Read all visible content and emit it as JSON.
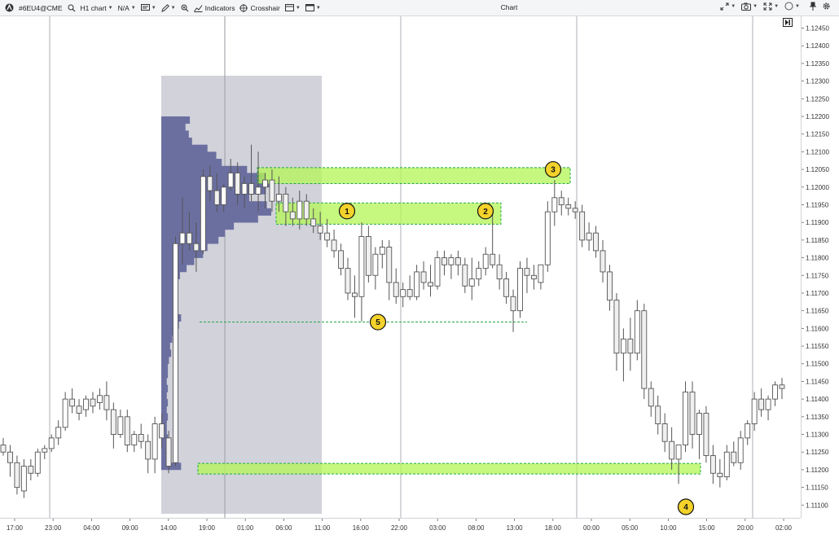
{
  "toolbar": {
    "symbol": "#6EU4@CME",
    "timeframe": "H1 chart",
    "value": "N/A",
    "indicators": "Indicators",
    "crosshair": "Crosshair",
    "title": "Chart"
  },
  "icons": {
    "logo": "atas-logo-icon",
    "search": "search-icon",
    "template": "template-icon",
    "pencil": "pencil-icon",
    "zoom": "zoom-icon",
    "indicators": "line-chart-icon",
    "crosshair": "crosshair-icon",
    "layout": "layout-icon",
    "window": "window-icon",
    "arrows": "expand-arrows-icon",
    "camera": "camera-icon",
    "fullscreen": "fullscreen-icon",
    "circle": "circle-icon",
    "pin": "pin-icon",
    "settings": "gear-icon",
    "goto": "goto-last-bar-icon"
  },
  "price_axis": {
    "labels": [
      "1.12450",
      "1.12400",
      "1.12350",
      "1.12300",
      "1.12250",
      "1.12200",
      "1.12150",
      "1.12100",
      "1.12050",
      "1.12000",
      "1.11950",
      "1.11900",
      "1.11850",
      "1.11800",
      "1.11750",
      "1.11700",
      "1.11650",
      "1.11600",
      "1.11550",
      "1.11500",
      "1.11450",
      "1.11400",
      "1.11350",
      "1.11300",
      "1.11250",
      "1.11200",
      "1.11150",
      "1.11100"
    ]
  },
  "time_axis": {
    "labels": [
      "17:00",
      "23:00",
      "04:00",
      "09:00",
      "14:00",
      "19:00",
      "01:00",
      "06:00",
      "11:00",
      "16:00",
      "22:00",
      "03:00",
      "08:00",
      "13:00",
      "18:00",
      "00:00",
      "05:00",
      "10:00",
      "15:00",
      "20:00",
      "02:00"
    ]
  },
  "markers": [
    {
      "label": "1"
    },
    {
      "label": "2"
    },
    {
      "label": "3"
    },
    {
      "label": "4"
    },
    {
      "label": "5"
    }
  ],
  "colors": {
    "candle_border": "#555555",
    "profile": "#6b6fa0",
    "profile_bg": "#cfd0d8",
    "zone_fill": "#b6f55a",
    "zone_border": "#22a84a",
    "marker_fill": "#f3d22b"
  },
  "chart_data": {
    "type": "candlestick",
    "ylim": [
      1.1108,
      1.12465
    ],
    "zones": [
      {
        "name": "1",
        "low": 1.11895,
        "high": 1.11955
      },
      {
        "name": "3",
        "low": 1.1201,
        "high": 1.12055
      },
      {
        "name": "4",
        "low": 1.11188,
        "high": 1.11218
      }
    ],
    "level_5": 1.11618,
    "candles": [
      {
        "o": 1.1127,
        "h": 1.1129,
        "l": 1.1124,
        "c": 1.1125
      },
      {
        "o": 1.1125,
        "h": 1.1127,
        "l": 1.1118,
        "c": 1.1122
      },
      {
        "o": 1.1122,
        "h": 1.1124,
        "l": 1.1113,
        "c": 1.1115
      },
      {
        "o": 1.1114,
        "h": 1.1123,
        "l": 1.1112,
        "c": 1.1121
      },
      {
        "o": 1.1121,
        "h": 1.1123,
        "l": 1.1117,
        "c": 1.1119
      },
      {
        "o": 1.1119,
        "h": 1.1126,
        "l": 1.1118,
        "c": 1.1125
      },
      {
        "o": 1.1125,
        "h": 1.1127,
        "l": 1.1123,
        "c": 1.1126
      },
      {
        "o": 1.1126,
        "h": 1.113,
        "l": 1.1125,
        "c": 1.1129
      },
      {
        "o": 1.1129,
        "h": 1.1134,
        "l": 1.1127,
        "c": 1.1132
      },
      {
        "o": 1.1132,
        "h": 1.1142,
        "l": 1.1131,
        "c": 1.114
      },
      {
        "o": 1.114,
        "h": 1.1143,
        "l": 1.1136,
        "c": 1.1138
      },
      {
        "o": 1.1138,
        "h": 1.114,
        "l": 1.1134,
        "c": 1.1136
      },
      {
        "o": 1.1137,
        "h": 1.1141,
        "l": 1.1135,
        "c": 1.114
      },
      {
        "o": 1.114,
        "h": 1.1142,
        "l": 1.1136,
        "c": 1.1138
      },
      {
        "o": 1.1139,
        "h": 1.1143,
        "l": 1.1137,
        "c": 1.1141
      },
      {
        "o": 1.1141,
        "h": 1.1145,
        "l": 1.1134,
        "c": 1.1137
      },
      {
        "o": 1.1137,
        "h": 1.1139,
        "l": 1.1126,
        "c": 1.113
      },
      {
        "o": 1.113,
        "h": 1.1137,
        "l": 1.1129,
        "c": 1.1135
      },
      {
        "o": 1.1135,
        "h": 1.1137,
        "l": 1.1125,
        "c": 1.1127
      },
      {
        "o": 1.1127,
        "h": 1.1131,
        "l": 1.1125,
        "c": 1.113
      },
      {
        "o": 1.113,
        "h": 1.1133,
        "l": 1.1126,
        "c": 1.1128
      },
      {
        "o": 1.1128,
        "h": 1.113,
        "l": 1.1119,
        "c": 1.1123
      },
      {
        "o": 1.1123,
        "h": 1.1135,
        "l": 1.1119,
        "c": 1.1133
      },
      {
        "o": 1.1133,
        "h": 1.1136,
        "l": 1.1126,
        "c": 1.1129
      },
      {
        "o": 1.1129,
        "h": 1.1131,
        "l": 1.1119,
        "c": 1.1121
      },
      {
        "o": 1.1122,
        "h": 1.1186,
        "l": 1.1121,
        "c": 1.1184
      },
      {
        "o": 1.1184,
        "h": 1.1197,
        "l": 1.1178,
        "c": 1.1187
      },
      {
        "o": 1.1187,
        "h": 1.1193,
        "l": 1.1182,
        "c": 1.1184
      },
      {
        "o": 1.1184,
        "h": 1.119,
        "l": 1.1176,
        "c": 1.1182
      },
      {
        "o": 1.1182,
        "h": 1.1205,
        "l": 1.1181,
        "c": 1.1203
      },
      {
        "o": 1.1203,
        "h": 1.1206,
        "l": 1.1196,
        "c": 1.1199
      },
      {
        "o": 1.1199,
        "h": 1.1204,
        "l": 1.1193,
        "c": 1.1195
      },
      {
        "o": 1.1195,
        "h": 1.1201,
        "l": 1.1193,
        "c": 1.12
      },
      {
        "o": 1.12,
        "h": 1.1208,
        "l": 1.1199,
        "c": 1.1204
      },
      {
        "o": 1.1204,
        "h": 1.1207,
        "l": 1.1195,
        "c": 1.1198
      },
      {
        "o": 1.1198,
        "h": 1.1203,
        "l": 1.1194,
        "c": 1.1201
      },
      {
        "o": 1.1201,
        "h": 1.1212,
        "l": 1.1196,
        "c": 1.1198
      },
      {
        "o": 1.1198,
        "h": 1.121,
        "l": 1.1193,
        "c": 1.12
      },
      {
        "o": 1.12,
        "h": 1.1204,
        "l": 1.1194,
        "c": 1.1202
      },
      {
        "o": 1.1202,
        "h": 1.1205,
        "l": 1.1193,
        "c": 1.1196
      },
      {
        "o": 1.1196,
        "h": 1.1203,
        "l": 1.1193,
        "c": 1.1198
      },
      {
        "o": 1.1198,
        "h": 1.12,
        "l": 1.1189,
        "c": 1.1193
      },
      {
        "o": 1.1193,
        "h": 1.1197,
        "l": 1.1189,
        "c": 1.1191
      },
      {
        "o": 1.1191,
        "h": 1.1199,
        "l": 1.1188,
        "c": 1.1196
      },
      {
        "o": 1.1196,
        "h": 1.1198,
        "l": 1.1189,
        "c": 1.1191
      },
      {
        "o": 1.1191,
        "h": 1.1194,
        "l": 1.1187,
        "c": 1.1189
      },
      {
        "o": 1.1189,
        "h": 1.1193,
        "l": 1.1185,
        "c": 1.1187
      },
      {
        "o": 1.1187,
        "h": 1.1191,
        "l": 1.1183,
        "c": 1.1185
      },
      {
        "o": 1.1185,
        "h": 1.1188,
        "l": 1.118,
        "c": 1.1182
      },
      {
        "o": 1.1182,
        "h": 1.1184,
        "l": 1.1175,
        "c": 1.1177
      },
      {
        "o": 1.1177,
        "h": 1.118,
        "l": 1.1168,
        "c": 1.117
      },
      {
        "o": 1.117,
        "h": 1.1175,
        "l": 1.1163,
        "c": 1.1169
      },
      {
        "o": 1.1169,
        "h": 1.119,
        "l": 1.1162,
        "c": 1.1186
      },
      {
        "o": 1.1186,
        "h": 1.1189,
        "l": 1.1173,
        "c": 1.1175
      },
      {
        "o": 1.1175,
        "h": 1.1183,
        "l": 1.1171,
        "c": 1.1181
      },
      {
        "o": 1.1181,
        "h": 1.1185,
        "l": 1.1177,
        "c": 1.1183
      },
      {
        "o": 1.1183,
        "h": 1.1185,
        "l": 1.1168,
        "c": 1.1173
      },
      {
        "o": 1.1173,
        "h": 1.1177,
        "l": 1.1167,
        "c": 1.1169
      },
      {
        "o": 1.1169,
        "h": 1.1173,
        "l": 1.1166,
        "c": 1.1171
      },
      {
        "o": 1.1171,
        "h": 1.1175,
        "l": 1.1168,
        "c": 1.1169
      },
      {
        "o": 1.1169,
        "h": 1.1178,
        "l": 1.1168,
        "c": 1.1176
      },
      {
        "o": 1.1176,
        "h": 1.1179,
        "l": 1.1171,
        "c": 1.1173
      },
      {
        "o": 1.1173,
        "h": 1.1178,
        "l": 1.1169,
        "c": 1.1172
      },
      {
        "o": 1.1172,
        "h": 1.1182,
        "l": 1.1171,
        "c": 1.118
      },
      {
        "o": 1.118,
        "h": 1.1182,
        "l": 1.1175,
        "c": 1.1178
      },
      {
        "o": 1.1178,
        "h": 1.1181,
        "l": 1.1174,
        "c": 1.118
      },
      {
        "o": 1.118,
        "h": 1.1182,
        "l": 1.1175,
        "c": 1.1178
      },
      {
        "o": 1.1178,
        "h": 1.118,
        "l": 1.117,
        "c": 1.1172
      },
      {
        "o": 1.1172,
        "h": 1.118,
        "l": 1.1168,
        "c": 1.1174
      },
      {
        "o": 1.1174,
        "h": 1.1179,
        "l": 1.1172,
        "c": 1.1177
      },
      {
        "o": 1.1177,
        "h": 1.1183,
        "l": 1.1175,
        "c": 1.1181
      },
      {
        "o": 1.1181,
        "h": 1.1193,
        "l": 1.1177,
        "c": 1.1178
      },
      {
        "o": 1.1178,
        "h": 1.1181,
        "l": 1.1171,
        "c": 1.1174
      },
      {
        "o": 1.1174,
        "h": 1.1176,
        "l": 1.1167,
        "c": 1.1169
      },
      {
        "o": 1.1169,
        "h": 1.1171,
        "l": 1.1159,
        "c": 1.1165
      },
      {
        "o": 1.1165,
        "h": 1.1179,
        "l": 1.1163,
        "c": 1.1177
      },
      {
        "o": 1.1177,
        "h": 1.118,
        "l": 1.117,
        "c": 1.1175
      },
      {
        "o": 1.1175,
        "h": 1.1178,
        "l": 1.1171,
        "c": 1.1174
      },
      {
        "o": 1.1173,
        "h": 1.1178,
        "l": 1.1171,
        "c": 1.1178
      },
      {
        "o": 1.1178,
        "h": 1.1196,
        "l": 1.1176,
        "c": 1.1193
      },
      {
        "o": 1.1193,
        "h": 1.1202,
        "l": 1.1189,
        "c": 1.1197
      },
      {
        "o": 1.1197,
        "h": 1.1199,
        "l": 1.1192,
        "c": 1.1195
      },
      {
        "o": 1.1195,
        "h": 1.1197,
        "l": 1.1192,
        "c": 1.1194
      },
      {
        "o": 1.1194,
        "h": 1.1196,
        "l": 1.1191,
        "c": 1.1193
      },
      {
        "o": 1.1193,
        "h": 1.1195,
        "l": 1.1183,
        "c": 1.1185
      },
      {
        "o": 1.1185,
        "h": 1.119,
        "l": 1.1182,
        "c": 1.1187
      },
      {
        "o": 1.1187,
        "h": 1.1189,
        "l": 1.118,
        "c": 1.1182
      },
      {
        "o": 1.1182,
        "h": 1.1185,
        "l": 1.1173,
        "c": 1.1176
      },
      {
        "o": 1.1176,
        "h": 1.1178,
        "l": 1.1165,
        "c": 1.1168
      },
      {
        "o": 1.1168,
        "h": 1.117,
        "l": 1.1148,
        "c": 1.1153
      },
      {
        "o": 1.1153,
        "h": 1.116,
        "l": 1.1145,
        "c": 1.1157
      },
      {
        "o": 1.1157,
        "h": 1.1163,
        "l": 1.1148,
        "c": 1.1153
      },
      {
        "o": 1.1153,
        "h": 1.1168,
        "l": 1.1151,
        "c": 1.1165
      },
      {
        "o": 1.1165,
        "h": 1.1167,
        "l": 1.114,
        "c": 1.1143
      },
      {
        "o": 1.1143,
        "h": 1.1145,
        "l": 1.1135,
        "c": 1.1138
      },
      {
        "o": 1.1138,
        "h": 1.1141,
        "l": 1.113,
        "c": 1.1133
      },
      {
        "o": 1.1133,
        "h": 1.1136,
        "l": 1.1125,
        "c": 1.1128
      },
      {
        "o": 1.1128,
        "h": 1.1132,
        "l": 1.112,
        "c": 1.1123
      },
      {
        "o": 1.1123,
        "h": 1.1127,
        "l": 1.1116,
        "c": 1.1127
      },
      {
        "o": 1.1127,
        "h": 1.1145,
        "l": 1.1125,
        "c": 1.1142
      },
      {
        "o": 1.1142,
        "h": 1.1145,
        "l": 1.1126,
        "c": 1.113
      },
      {
        "o": 1.113,
        "h": 1.1137,
        "l": 1.1123,
        "c": 1.1136
      },
      {
        "o": 1.1136,
        "h": 1.1138,
        "l": 1.1122,
        "c": 1.1124
      },
      {
        "o": 1.1124,
        "h": 1.1127,
        "l": 1.1116,
        "c": 1.1119
      },
      {
        "o": 1.1119,
        "h": 1.1123,
        "l": 1.1115,
        "c": 1.1118
      },
      {
        "o": 1.1118,
        "h": 1.1127,
        "l": 1.1117,
        "c": 1.1125
      },
      {
        "o": 1.1125,
        "h": 1.1128,
        "l": 1.1121,
        "c": 1.1122
      },
      {
        "o": 1.1122,
        "h": 1.1131,
        "l": 1.112,
        "c": 1.1129
      },
      {
        "o": 1.1129,
        "h": 1.1134,
        "l": 1.1127,
        "c": 1.1133
      },
      {
        "o": 1.1133,
        "h": 1.1142,
        "l": 1.1131,
        "c": 1.114
      },
      {
        "o": 1.114,
        "h": 1.1143,
        "l": 1.1135,
        "c": 1.1137
      },
      {
        "o": 1.1137,
        "h": 1.1141,
        "l": 1.1134,
        "c": 1.114
      },
      {
        "o": 1.114,
        "h": 1.1145,
        "l": 1.1138,
        "c": 1.1144
      },
      {
        "o": 1.1144,
        "h": 1.1146,
        "l": 1.114,
        "c": 1.1143
      }
    ],
    "volume_profile": [
      {
        "price": 1.1213,
        "vol": 0.28
      },
      {
        "price": 1.1211,
        "vol": 0.42
      },
      {
        "price": 1.1209,
        "vol": 0.5
      },
      {
        "price": 1.1207,
        "vol": 0.55
      },
      {
        "price": 1.1205,
        "vol": 0.78
      },
      {
        "price": 1.1203,
        "vol": 0.95
      },
      {
        "price": 1.1201,
        "vol": 1.0
      },
      {
        "price": 1.1199,
        "vol": 0.95
      },
      {
        "price": 1.1197,
        "vol": 0.8
      },
      {
        "price": 1.1195,
        "vol": 0.96
      },
      {
        "price": 1.1193,
        "vol": 1.0
      },
      {
        "price": 1.1191,
        "vol": 0.88
      },
      {
        "price": 1.1189,
        "vol": 0.66
      },
      {
        "price": 1.1187,
        "vol": 0.58
      },
      {
        "price": 1.1185,
        "vol": 0.52
      },
      {
        "price": 1.1183,
        "vol": 0.42
      },
      {
        "price": 1.1181,
        "vol": 0.38
      },
      {
        "price": 1.1179,
        "vol": 0.3
      },
      {
        "price": 1.1177,
        "vol": 0.23
      },
      {
        "price": 1.1175,
        "vol": 0.17
      },
      {
        "price": 1.1173,
        "vol": 0.15
      },
      {
        "price": 1.1171,
        "vol": 0.14
      },
      {
        "price": 1.1169,
        "vol": 0.12
      },
      {
        "price": 1.1167,
        "vol": 0.13
      },
      {
        "price": 1.1165,
        "vol": 0.14
      },
      {
        "price": 1.1163,
        "vol": 0.18
      },
      {
        "price": 1.1161,
        "vol": 0.16
      },
      {
        "price": 1.1159,
        "vol": 0.11
      },
      {
        "price": 1.1157,
        "vol": 0.1
      },
      {
        "price": 1.1155,
        "vol": 0.08
      },
      {
        "price": 1.1153,
        "vol": 0.09
      },
      {
        "price": 1.1151,
        "vol": 0.07
      },
      {
        "price": 1.1149,
        "vol": 0.06
      },
      {
        "price": 1.1147,
        "vol": 0.06
      },
      {
        "price": 1.1145,
        "vol": 0.05
      },
      {
        "price": 1.1143,
        "vol": 0.06
      },
      {
        "price": 1.1141,
        "vol": 0.05
      },
      {
        "price": 1.1139,
        "vol": 0.06
      },
      {
        "price": 1.1137,
        "vol": 0.05
      },
      {
        "price": 1.1135,
        "vol": 0.06
      },
      {
        "price": 1.1133,
        "vol": 0.05
      },
      {
        "price": 1.1131,
        "vol": 0.05
      },
      {
        "price": 1.1129,
        "vol": 0.06
      },
      {
        "price": 1.1127,
        "vol": 0.05
      },
      {
        "price": 1.1125,
        "vol": 0.06
      },
      {
        "price": 1.1123,
        "vol": 0.08
      },
      {
        "price": 1.1121,
        "vol": 0.18
      },
      {
        "price": 1.1219,
        "vol": 0.26
      },
      {
        "price": 1.1217,
        "vol": 0.22
      },
      {
        "price": 1.1215,
        "vol": 0.25
      }
    ]
  }
}
